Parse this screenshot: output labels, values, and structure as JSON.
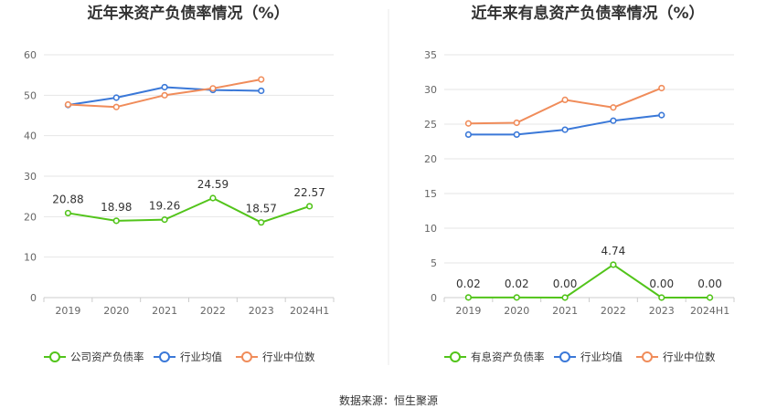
{
  "source": "数据来源：恒生聚源",
  "chart_data": [
    {
      "type": "line",
      "title": "近年来资产负债率情况（%）",
      "categories": [
        "2019",
        "2020",
        "2021",
        "2022",
        "2023",
        "2024H1"
      ],
      "ylim": [
        0,
        60
      ],
      "yticks": [
        0,
        10,
        20,
        30,
        40,
        50,
        60
      ],
      "grid": true,
      "legend_position": "bottom",
      "series": [
        {
          "name": "公司资产负债率",
          "color": "#52c41a",
          "values": [
            20.88,
            18.98,
            19.26,
            24.59,
            18.57,
            22.57
          ],
          "labels": [
            "20.88",
            "18.98",
            "19.26",
            "24.59",
            "18.57",
            "22.57"
          ]
        },
        {
          "name": "行业均值",
          "color": "#3a78d8",
          "values": [
            47.6,
            49.4,
            52.0,
            51.3,
            51.1,
            null
          ]
        },
        {
          "name": "行业中位数",
          "color": "#f08c5a",
          "values": [
            47.7,
            47.1,
            50.0,
            51.7,
            53.9,
            null
          ]
        }
      ]
    },
    {
      "type": "line",
      "title": "近年来有息资产负债率情况（%）",
      "categories": [
        "2019",
        "2020",
        "2021",
        "2022",
        "2023",
        "2024H1"
      ],
      "ylim": [
        0,
        35
      ],
      "yticks": [
        0,
        5,
        10,
        15,
        20,
        25,
        30,
        35
      ],
      "grid": true,
      "legend_position": "bottom",
      "series": [
        {
          "name": "有息资产负债率",
          "color": "#52c41a",
          "values": [
            0.02,
            0.02,
            0.0,
            4.74,
            0.0,
            0.0
          ],
          "labels": [
            "0.02",
            "0.02",
            "0.00",
            "4.74",
            "0.00",
            "0.00"
          ]
        },
        {
          "name": "行业均值",
          "color": "#3a78d8",
          "values": [
            23.5,
            23.5,
            24.2,
            25.5,
            26.3,
            null
          ]
        },
        {
          "name": "行业中位数",
          "color": "#f08c5a",
          "values": [
            25.1,
            25.2,
            28.5,
            27.4,
            30.2,
            null
          ]
        }
      ]
    }
  ]
}
